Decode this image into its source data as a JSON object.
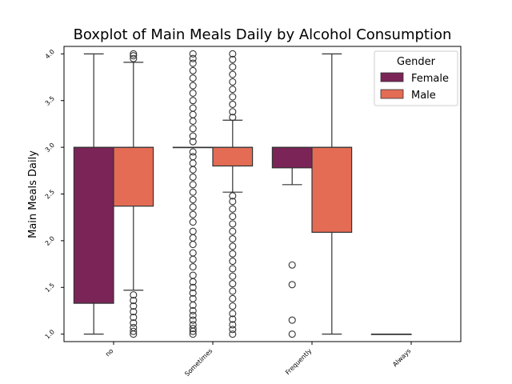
{
  "chart_data": {
    "type": "boxplot",
    "title": "Boxplot of Main Meals Daily by Alcohol Consumption",
    "xlabel": "",
    "ylabel": "Main Meals Daily",
    "ylim": [
      0.92,
      4.08
    ],
    "yticks": [
      "1.0",
      "1.5",
      "2.0",
      "2.5",
      "3.0",
      "3.5",
      "4.0"
    ],
    "categories": [
      "no",
      "Sometimes",
      "Frequently",
      "Always"
    ],
    "legend": {
      "title": "Gender",
      "placement": "top-right",
      "entries": [
        "Female",
        "Male"
      ]
    },
    "series": [
      {
        "name": "Female",
        "color": "#7b2457",
        "boxes": [
          {
            "category": "no",
            "whislo": 1.0,
            "q1": 1.33,
            "median": 3.0,
            "q3": 3.0,
            "whishi": 4.0,
            "fliers": []
          },
          {
            "category": "Sometimes",
            "whislo": 3.0,
            "q1": 3.0,
            "median": 3.0,
            "q3": 3.0,
            "whishi": 3.0,
            "fliers": [
              1.0,
              1.03,
              1.06,
              1.1,
              1.15,
              1.2,
              1.25,
              1.31,
              1.38,
              1.44,
              1.5,
              1.56,
              1.63,
              1.72,
              1.8,
              1.87,
              1.96,
              2.03,
              2.1,
              2.2,
              2.28,
              2.36,
              2.44,
              2.52,
              2.6,
              2.68,
              2.76,
              2.83,
              2.9,
              2.95,
              3.06,
              3.12,
              3.2,
              3.28,
              3.35,
              3.42,
              3.5,
              3.58,
              3.66,
              3.74,
              3.82,
              3.9,
              3.95,
              4.0
            ]
          },
          {
            "category": "Frequently",
            "whislo": 2.6,
            "q1": 2.78,
            "median": 3.0,
            "q3": 3.0,
            "whishi": 3.0,
            "fliers": [
              1.0,
              1.15,
              1.53,
              1.74
            ]
          },
          {
            "category": "Always",
            "whislo": 1.0,
            "q1": 1.0,
            "median": 1.0,
            "q3": 1.0,
            "whishi": 1.0,
            "fliers": []
          }
        ]
      },
      {
        "name": "Male",
        "color": "#e46c54",
        "boxes": [
          {
            "category": "no",
            "whislo": 1.47,
            "q1": 2.37,
            "median": 3.0,
            "q3": 3.0,
            "whishi": 3.91,
            "fliers": [
              1.0,
              1.03,
              1.07,
              1.12,
              1.18,
              1.24,
              1.3,
              1.36,
              1.42,
              3.95,
              3.98,
              4.0
            ]
          },
          {
            "category": "Sometimes",
            "whislo": 2.52,
            "q1": 2.8,
            "median": 3.0,
            "q3": 3.0,
            "whishi": 3.29,
            "fliers": [
              1.0,
              1.05,
              1.1,
              1.16,
              1.22,
              1.3,
              1.38,
              1.46,
              1.54,
              1.62,
              1.7,
              1.78,
              1.86,
              1.94,
              2.02,
              2.1,
              2.18,
              2.26,
              2.34,
              2.42,
              2.48,
              3.32,
              3.38,
              3.46,
              3.54,
              3.62,
              3.7,
              3.78,
              3.86,
              3.94,
              4.0
            ]
          },
          {
            "category": "Frequently",
            "whislo": 1.0,
            "q1": 2.09,
            "median": 3.0,
            "q3": 3.0,
            "whishi": 4.0,
            "fliers": []
          },
          {
            "category": "Always",
            "whislo": null,
            "q1": null,
            "median": null,
            "q3": null,
            "whishi": null,
            "fliers": []
          }
        ]
      }
    ],
    "grid": false
  }
}
